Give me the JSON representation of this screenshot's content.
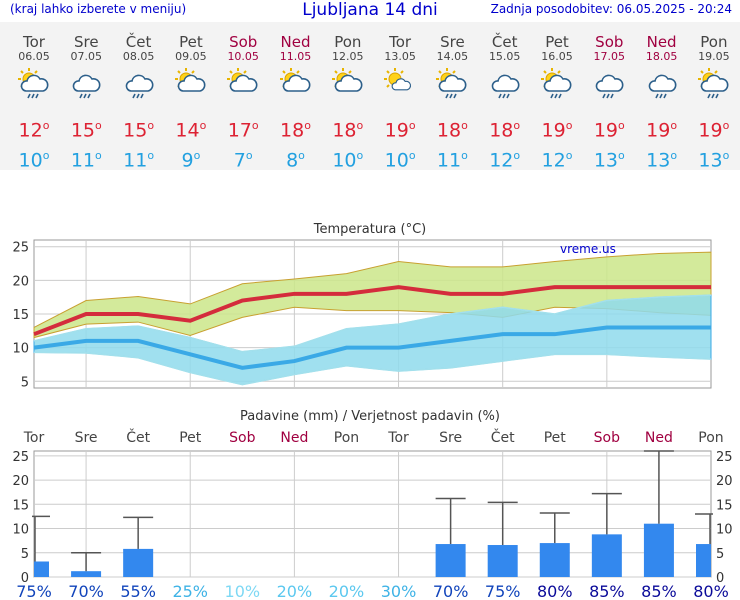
{
  "header": {
    "menu_hint": "(kraj lahko izberete v meniju)",
    "title": "Ljubljana 14 dni",
    "updated": "Zadnja posodobitev: 06.05.2025 - 20:24"
  },
  "days": [
    {
      "name": "Tor",
      "date": "06.05",
      "weekend": false,
      "icon": "sun-cloud-rain-icon",
      "max": "12",
      "min": "10"
    },
    {
      "name": "Sre",
      "date": "07.05",
      "weekend": false,
      "icon": "cloud-rain-icon",
      "max": "15",
      "min": "11"
    },
    {
      "name": "Čet",
      "date": "08.05",
      "weekend": false,
      "icon": "cloud-rain-icon",
      "max": "15",
      "min": "11"
    },
    {
      "name": "Pet",
      "date": "09.05",
      "weekend": false,
      "icon": "sun-cloud-icon",
      "max": "14",
      "min": "9"
    },
    {
      "name": "Sob",
      "date": "10.05",
      "weekend": true,
      "icon": "sun-cloud-icon",
      "max": "17",
      "min": "7"
    },
    {
      "name": "Ned",
      "date": "11.05",
      "weekend": true,
      "icon": "sun-cloud-icon",
      "max": "18",
      "min": "8"
    },
    {
      "name": "Pon",
      "date": "12.05",
      "weekend": false,
      "icon": "sun-cloud-icon",
      "max": "18",
      "min": "10"
    },
    {
      "name": "Tor",
      "date": "13.05",
      "weekend": false,
      "icon": "sun-small-cloud-icon",
      "max": "19",
      "min": "10"
    },
    {
      "name": "Sre",
      "date": "14.05",
      "weekend": false,
      "icon": "sun-cloud-rain-icon",
      "max": "18",
      "min": "11"
    },
    {
      "name": "Čet",
      "date": "15.05",
      "weekend": false,
      "icon": "cloud-rain-icon",
      "max": "18",
      "min": "12"
    },
    {
      "name": "Pet",
      "date": "16.05",
      "weekend": false,
      "icon": "sun-cloud-rain-icon",
      "max": "19",
      "min": "12"
    },
    {
      "name": "Sob",
      "date": "17.05",
      "weekend": true,
      "icon": "cloud-rain-icon",
      "max": "19",
      "min": "13"
    },
    {
      "name": "Ned",
      "date": "18.05",
      "weekend": true,
      "icon": "cloud-rain-icon",
      "max": "19",
      "min": "13"
    },
    {
      "name": "Pon",
      "date": "19.05",
      "weekend": false,
      "icon": "sun-cloud-rain-icon",
      "max": "19",
      "min": "13"
    }
  ],
  "chart_data": [
    {
      "type": "line",
      "title": "Temperatura (°C)",
      "watermark": "vreme.us",
      "ylim": [
        4,
        26
      ],
      "yticks": [
        5,
        10,
        15,
        20,
        25
      ],
      "grid": true,
      "x": [
        0,
        1,
        2,
        3,
        4,
        5,
        6,
        7,
        8,
        9,
        10,
        11,
        12,
        13
      ],
      "series": [
        {
          "role": "max",
          "color": "#d42c3c",
          "values": [
            12,
            15,
            15,
            14,
            17,
            18,
            18,
            19,
            18,
            18,
            19,
            19,
            19,
            19
          ]
        },
        {
          "role": "max-range-upper",
          "color": "#c8e67a",
          "values": [
            13,
            17,
            17.6,
            16.5,
            19.5,
            20.2,
            21,
            22.8,
            22,
            22,
            22.8,
            23.5,
            24,
            24.2
          ]
        },
        {
          "role": "max-range-lower",
          "color": "#c8e67a",
          "values": [
            11.5,
            13.5,
            13.8,
            11.8,
            14.5,
            16,
            15.5,
            15.5,
            15.2,
            14.5,
            16,
            15.8,
            15.2,
            14.8
          ]
        },
        {
          "role": "min",
          "color": "#3aa9e6",
          "values": [
            10,
            11,
            11,
            9,
            7,
            8,
            10,
            10,
            11,
            12,
            12,
            13,
            13,
            13
          ]
        },
        {
          "role": "min-range-upper",
          "color": "#a3e0ec",
          "values": [
            11,
            12.8,
            13.2,
            11.5,
            9.4,
            10.2,
            12.8,
            13.5,
            15,
            16,
            15,
            17,
            17.5,
            17.8
          ]
        },
        {
          "role": "min-range-lower",
          "color": "#a3e0ec",
          "values": [
            9.3,
            9.2,
            8.5,
            6.3,
            4.5,
            6,
            7.3,
            6.5,
            7,
            8,
            9,
            9,
            8.6,
            8.3
          ]
        }
      ]
    },
    {
      "type": "bar",
      "title": "Padavine (mm) / Verjetnost padavin (%)",
      "categories": [
        "Tor",
        "Sre",
        "Čet",
        "Pet",
        "Sob",
        "Ned",
        "Pon",
        "Tor",
        "Sre",
        "Čet",
        "Pet",
        "Sob",
        "Ned",
        "Pon"
      ],
      "weekend": [
        false,
        false,
        false,
        false,
        true,
        true,
        false,
        false,
        false,
        false,
        false,
        true,
        true,
        false
      ],
      "ylim": [
        0,
        26
      ],
      "yticks": [
        0,
        5,
        10,
        15,
        20,
        25
      ],
      "grid": true,
      "values": [
        3.2,
        1.2,
        5.8,
        0,
        0,
        0,
        0,
        0,
        6.8,
        6.6,
        7,
        8.8,
        11,
        6.8
      ],
      "error_high": [
        12.5,
        5,
        12.3,
        0,
        0,
        0,
        0,
        0,
        16.2,
        15.4,
        13.2,
        17.2,
        26,
        13
      ],
      "probability": [
        "75%",
        "70%",
        "55%",
        "25%",
        "10%",
        "20%",
        "20%",
        "30%",
        "70%",
        "75%",
        "80%",
        "85%",
        "85%",
        "80%"
      ],
      "probability_colors": [
        "#1144bb",
        "#1144bb",
        "#1144bb",
        "#3fb3e6",
        "#7ed8f4",
        "#5cc8ef",
        "#5cc8ef",
        "#3fb3e6",
        "#1144bb",
        "#1144bb",
        "#0a0a99",
        "#0a0a99",
        "#0a0a99",
        "#0a0a99"
      ],
      "bar_color": "#3388ee"
    }
  ]
}
